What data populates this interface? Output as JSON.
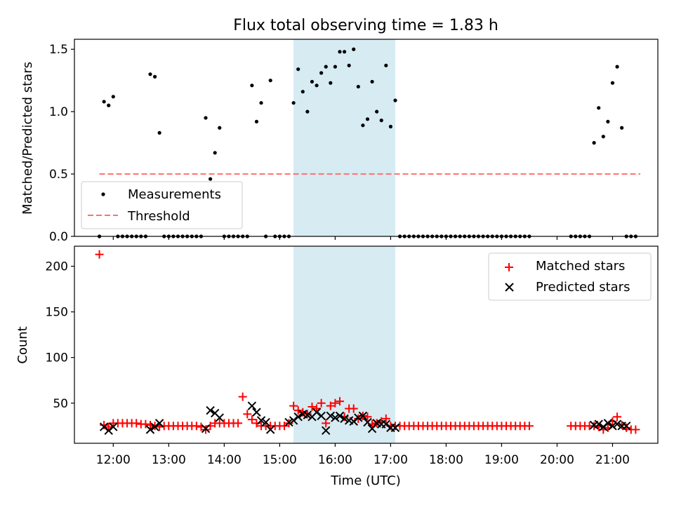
{
  "figure": {
    "title": "Flux total observing time = 1.83 h"
  },
  "chart_data": [
    {
      "type": "scatter",
      "panel": "top",
      "ylabel": "Matched/Predicted stars",
      "xlabel": "",
      "ylim": [
        0,
        1.58
      ],
      "xlim": [
        "11:18",
        "21:49"
      ],
      "yticks": [
        0.0,
        0.5,
        1.0,
        1.5
      ],
      "ytick_labels": [
        "0.0",
        "0.5",
        "1.0",
        "1.5"
      ],
      "legend_position": "lower-left",
      "highlight_span": {
        "start": "15:15",
        "end": "17:05",
        "color": "#add8e6"
      },
      "threshold": {
        "name": "Threshold",
        "value": 0.5,
        "x_start": "11:45",
        "x_end": "21:30",
        "color": "#ff7070"
      },
      "series": [
        {
          "name": "Measurements",
          "color": "#000000",
          "marker": "dot",
          "x": [
            "11:45",
            "11:50",
            "11:55",
            "12:00",
            "12:05",
            "12:10",
            "12:15",
            "12:20",
            "12:25",
            "12:30",
            "12:35",
            "12:40",
            "12:45",
            "12:50",
            "12:55",
            "13:00",
            "13:05",
            "13:10",
            "13:15",
            "13:20",
            "13:25",
            "13:30",
            "13:35",
            "13:40",
            "13:45",
            "13:50",
            "13:55",
            "14:00",
            "14:05",
            "14:10",
            "14:15",
            "14:20",
            "14:25",
            "14:30",
            "14:35",
            "14:40",
            "14:45",
            "14:50",
            "14:55",
            "15:00",
            "15:05",
            "15:10",
            "15:15",
            "15:20",
            "15:25",
            "15:30",
            "15:35",
            "15:40",
            "15:45",
            "15:50",
            "15:55",
            "16:00",
            "16:05",
            "16:10",
            "16:15",
            "16:20",
            "16:25",
            "16:30",
            "16:35",
            "16:40",
            "16:45",
            "16:50",
            "16:55",
            "17:00",
            "17:05",
            "17:10",
            "17:15",
            "17:20",
            "17:25",
            "17:30",
            "17:35",
            "17:40",
            "17:45",
            "17:50",
            "17:55",
            "18:00",
            "18:05",
            "18:10",
            "18:15",
            "18:20",
            "18:25",
            "18:30",
            "18:35",
            "18:40",
            "18:45",
            "18:50",
            "18:55",
            "19:00",
            "19:05",
            "19:10",
            "19:15",
            "19:20",
            "19:25",
            "19:30",
            "20:15",
            "20:20",
            "20:25",
            "20:30",
            "20:35",
            "20:40",
            "20:45",
            "20:50",
            "20:55",
            "21:00",
            "21:05",
            "21:10",
            "21:15",
            "21:20",
            "21:25"
          ],
          "y": [
            0,
            1.08,
            1.05,
            1.12,
            0,
            0,
            0,
            0,
            0,
            0,
            0,
            1.3,
            1.28,
            0.83,
            0,
            0,
            0,
            0,
            0,
            0,
            0,
            0,
            0,
            0.95,
            0.46,
            0.67,
            0.87,
            0,
            0,
            0,
            0,
            0,
            0,
            1.21,
            0.92,
            1.07,
            0,
            1.25,
            0,
            0,
            0,
            0,
            1.07,
            1.34,
            1.16,
            1.0,
            1.24,
            1.21,
            1.31,
            1.36,
            1.23,
            1.36,
            1.48,
            1.48,
            1.37,
            1.5,
            1.2,
            0.89,
            0.94,
            1.24,
            1.0,
            0.93,
            1.37,
            0.88,
            1.09,
            0,
            0,
            0,
            0,
            0,
            0,
            0,
            0,
            0,
            0,
            0,
            0,
            0,
            0,
            0,
            0,
            0,
            0,
            0,
            0,
            0,
            0,
            0,
            0,
            0,
            0,
            0,
            0,
            0,
            0,
            0,
            0,
            0,
            0,
            0.75,
            1.03,
            0.8,
            0.92,
            1.23,
            1.36,
            0.87,
            0,
            0,
            0
          ]
        }
      ]
    },
    {
      "type": "scatter",
      "panel": "bottom",
      "ylabel": "Count",
      "xlabel": "Time (UTC)",
      "ylim": [
        6,
        222
      ],
      "xlim": [
        "11:18",
        "21:49"
      ],
      "yticks": [
        50,
        100,
        150,
        200
      ],
      "ytick_labels": [
        "50",
        "100",
        "150",
        "200"
      ],
      "xticks": [
        "12:00",
        "13:00",
        "14:00",
        "15:00",
        "16:00",
        "17:00",
        "18:00",
        "19:00",
        "20:00",
        "21:00"
      ],
      "xtick_labels": [
        "12:00",
        "13:00",
        "14:00",
        "15:00",
        "16:00",
        "17:00",
        "18:00",
        "19:00",
        "20:00",
        "21:00"
      ],
      "legend_position": "upper-right",
      "highlight_span": {
        "start": "15:15",
        "end": "17:05",
        "color": "#add8e6"
      },
      "series": [
        {
          "name": "Matched stars",
          "color": "#ff0000",
          "marker": "plus",
          "x": [
            "11:45",
            "11:50",
            "11:55",
            "12:00",
            "12:05",
            "12:10",
            "12:15",
            "12:20",
            "12:25",
            "12:30",
            "12:35",
            "12:40",
            "12:45",
            "12:50",
            "12:55",
            "13:00",
            "13:05",
            "13:10",
            "13:15",
            "13:20",
            "13:25",
            "13:30",
            "13:35",
            "13:40",
            "13:45",
            "13:50",
            "13:55",
            "14:00",
            "14:05",
            "14:10",
            "14:15",
            "14:20",
            "14:25",
            "14:30",
            "14:35",
            "14:40",
            "14:45",
            "14:50",
            "14:55",
            "15:00",
            "15:05",
            "15:10",
            "15:15",
            "15:20",
            "15:25",
            "15:30",
            "15:35",
            "15:40",
            "15:45",
            "15:50",
            "15:55",
            "16:00",
            "16:05",
            "16:10",
            "16:15",
            "16:20",
            "16:25",
            "16:30",
            "16:35",
            "16:40",
            "16:45",
            "16:50",
            "16:55",
            "17:00",
            "17:05",
            "17:10",
            "17:15",
            "17:20",
            "17:25",
            "17:30",
            "17:35",
            "17:40",
            "17:45",
            "17:50",
            "17:55",
            "18:00",
            "18:05",
            "18:10",
            "18:15",
            "18:20",
            "18:25",
            "18:30",
            "18:35",
            "18:40",
            "18:45",
            "18:50",
            "18:55",
            "19:00",
            "19:05",
            "19:10",
            "19:15",
            "19:20",
            "19:25",
            "19:30",
            "20:15",
            "20:20",
            "20:25",
            "20:30",
            "20:35",
            "20:40",
            "20:45",
            "20:50",
            "20:55",
            "21:00",
            "21:05",
            "21:10",
            "21:15",
            "21:20",
            "21:25"
          ],
          "y": [
            213,
            26,
            24,
            28,
            28,
            28,
            28,
            28,
            28,
            27,
            27,
            26,
            25,
            24,
            25,
            25,
            25,
            25,
            25,
            25,
            25,
            25,
            24,
            21,
            25,
            28,
            28,
            28,
            28,
            28,
            28,
            57,
            38,
            32,
            28,
            25,
            25,
            25,
            25,
            25,
            25,
            28,
            47,
            42,
            40,
            38,
            46,
            44,
            50,
            28,
            47,
            50,
            52,
            35,
            44,
            44,
            33,
            36,
            35,
            27,
            28,
            30,
            33,
            25,
            25,
            25,
            25,
            25,
            25,
            25,
            25,
            25,
            25,
            25,
            25,
            25,
            25,
            25,
            25,
            25,
            25,
            25,
            25,
            25,
            25,
            25,
            25,
            25,
            25,
            25,
            25,
            25,
            25,
            25,
            25,
            25,
            25,
            25,
            25,
            25,
            24,
            21,
            23,
            30,
            35,
            26,
            23,
            21,
            21
          ]
        },
        {
          "name": "Predicted stars",
          "color": "#000000",
          "marker": "x",
          "x": [
            "11:50",
            "11:55",
            "12:00",
            "12:40",
            "12:45",
            "12:50",
            "13:40",
            "13:45",
            "13:50",
            "13:55",
            "14:30",
            "14:35",
            "14:40",
            "14:45",
            "14:50",
            "15:10",
            "15:15",
            "15:20",
            "15:25",
            "15:30",
            "15:35",
            "15:40",
            "15:45",
            "15:50",
            "15:55",
            "16:00",
            "16:05",
            "16:10",
            "16:15",
            "16:20",
            "16:25",
            "16:30",
            "16:35",
            "16:40",
            "16:45",
            "16:50",
            "16:55",
            "17:00",
            "17:05",
            "20:40",
            "20:45",
            "20:50",
            "20:55",
            "21:00",
            "21:05",
            "21:10",
            "21:15"
          ],
          "y": [
            24,
            20,
            24,
            21,
            24,
            28,
            22,
            42,
            39,
            34,
            47,
            40,
            31,
            29,
            21,
            29,
            31,
            35,
            38,
            37,
            35,
            40,
            36,
            20,
            36,
            34,
            36,
            33,
            31,
            30,
            34,
            36,
            29,
            22,
            28,
            27,
            27,
            23,
            23,
            26,
            27,
            24,
            28,
            25,
            27,
            25,
            25
          ]
        }
      ]
    }
  ]
}
